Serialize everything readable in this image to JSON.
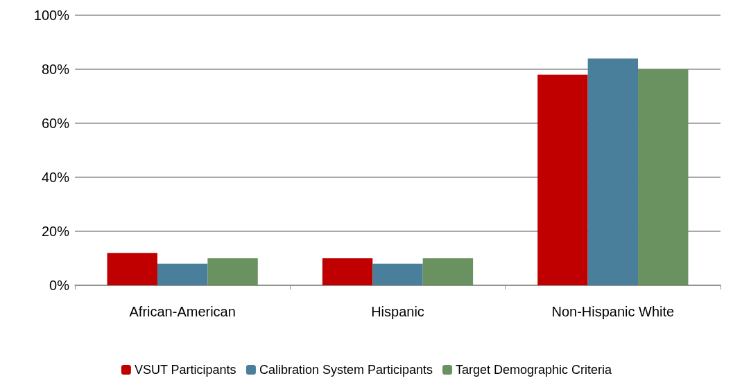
{
  "chart_data": {
    "type": "bar",
    "categories": [
      "African-American",
      "Hispanic",
      "Non-Hispanic White"
    ],
    "series": [
      {
        "name": "VSUT Participants",
        "color": "#c00000",
        "values": [
          12,
          10,
          78
        ]
      },
      {
        "name": "Calibration System Participants",
        "color": "#4a7f9b",
        "values": [
          8,
          8,
          84
        ]
      },
      {
        "name": "Target Demographic Criteria",
        "color": "#6a9160",
        "values": [
          10,
          10,
          80
        ]
      }
    ],
    "ylim": [
      0,
      100
    ],
    "yticks": [
      {
        "value": 0,
        "label": "0%"
      },
      {
        "value": 20,
        "label": "20%"
      },
      {
        "value": 40,
        "label": "40%"
      },
      {
        "value": 60,
        "label": "60%"
      },
      {
        "value": 80,
        "label": "80%"
      },
      {
        "value": 100,
        "label": "100%"
      }
    ],
    "grid": "y",
    "legend": "bottom"
  }
}
